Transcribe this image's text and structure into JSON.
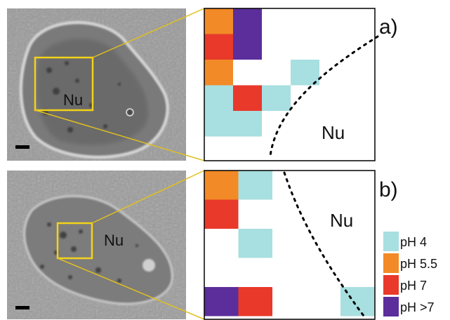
{
  "panels": [
    {
      "id": "a",
      "label": "a)",
      "cell_label": "Nu",
      "map_label": "Nu",
      "map_cells": [
        {
          "col": 0,
          "row": 0,
          "ph": "pH 5.5"
        },
        {
          "col": 1,
          "row": 0,
          "ph": "pH >7"
        },
        {
          "col": 0,
          "row": 1,
          "ph": "pH 7"
        },
        {
          "col": 1,
          "row": 1,
          "ph": "pH >7"
        },
        {
          "col": 0,
          "row": 2,
          "ph": "pH 5.5"
        },
        {
          "col": 3,
          "row": 2,
          "ph": "pH 4"
        },
        {
          "col": 0,
          "row": 3,
          "ph": "pH 4"
        },
        {
          "col": 1,
          "row": 3,
          "ph": "pH 7"
        },
        {
          "col": 2,
          "row": 3,
          "ph": "pH 4"
        },
        {
          "col": 0,
          "row": 4,
          "ph": "pH 4"
        },
        {
          "col": 1,
          "row": 4,
          "ph": "pH 4"
        }
      ]
    },
    {
      "id": "b",
      "label": "b)",
      "cell_label": "Nu",
      "map_label": "Nu",
      "map_cells": [
        {
          "col": 0,
          "row": 0,
          "ph": "pH 5.5"
        },
        {
          "col": 1,
          "row": 0,
          "ph": "pH 4"
        },
        {
          "col": 0,
          "row": 1,
          "ph": "pH 7"
        },
        {
          "col": 1,
          "row": 2,
          "ph": "pH 4"
        },
        {
          "col": 0,
          "row": 4,
          "ph": "pH >7"
        },
        {
          "col": 1,
          "row": 4,
          "ph": "pH 7"
        },
        {
          "col": 4,
          "row": 4,
          "ph": "pH 4"
        }
      ]
    }
  ],
  "legend": [
    {
      "label": "pH 4",
      "color": "#a8dfe0"
    },
    {
      "label": "pH 5.5",
      "color": "#f28a27"
    },
    {
      "label": "pH 7",
      "color": "#e8392b"
    },
    {
      "label": "pH >7",
      "color": "#5b2e9b"
    }
  ],
  "colors": {
    "zoom_box": "#f2d21a",
    "zoom_lines": "#e0c020",
    "map_border": "#000000",
    "boundary": "#000000"
  }
}
